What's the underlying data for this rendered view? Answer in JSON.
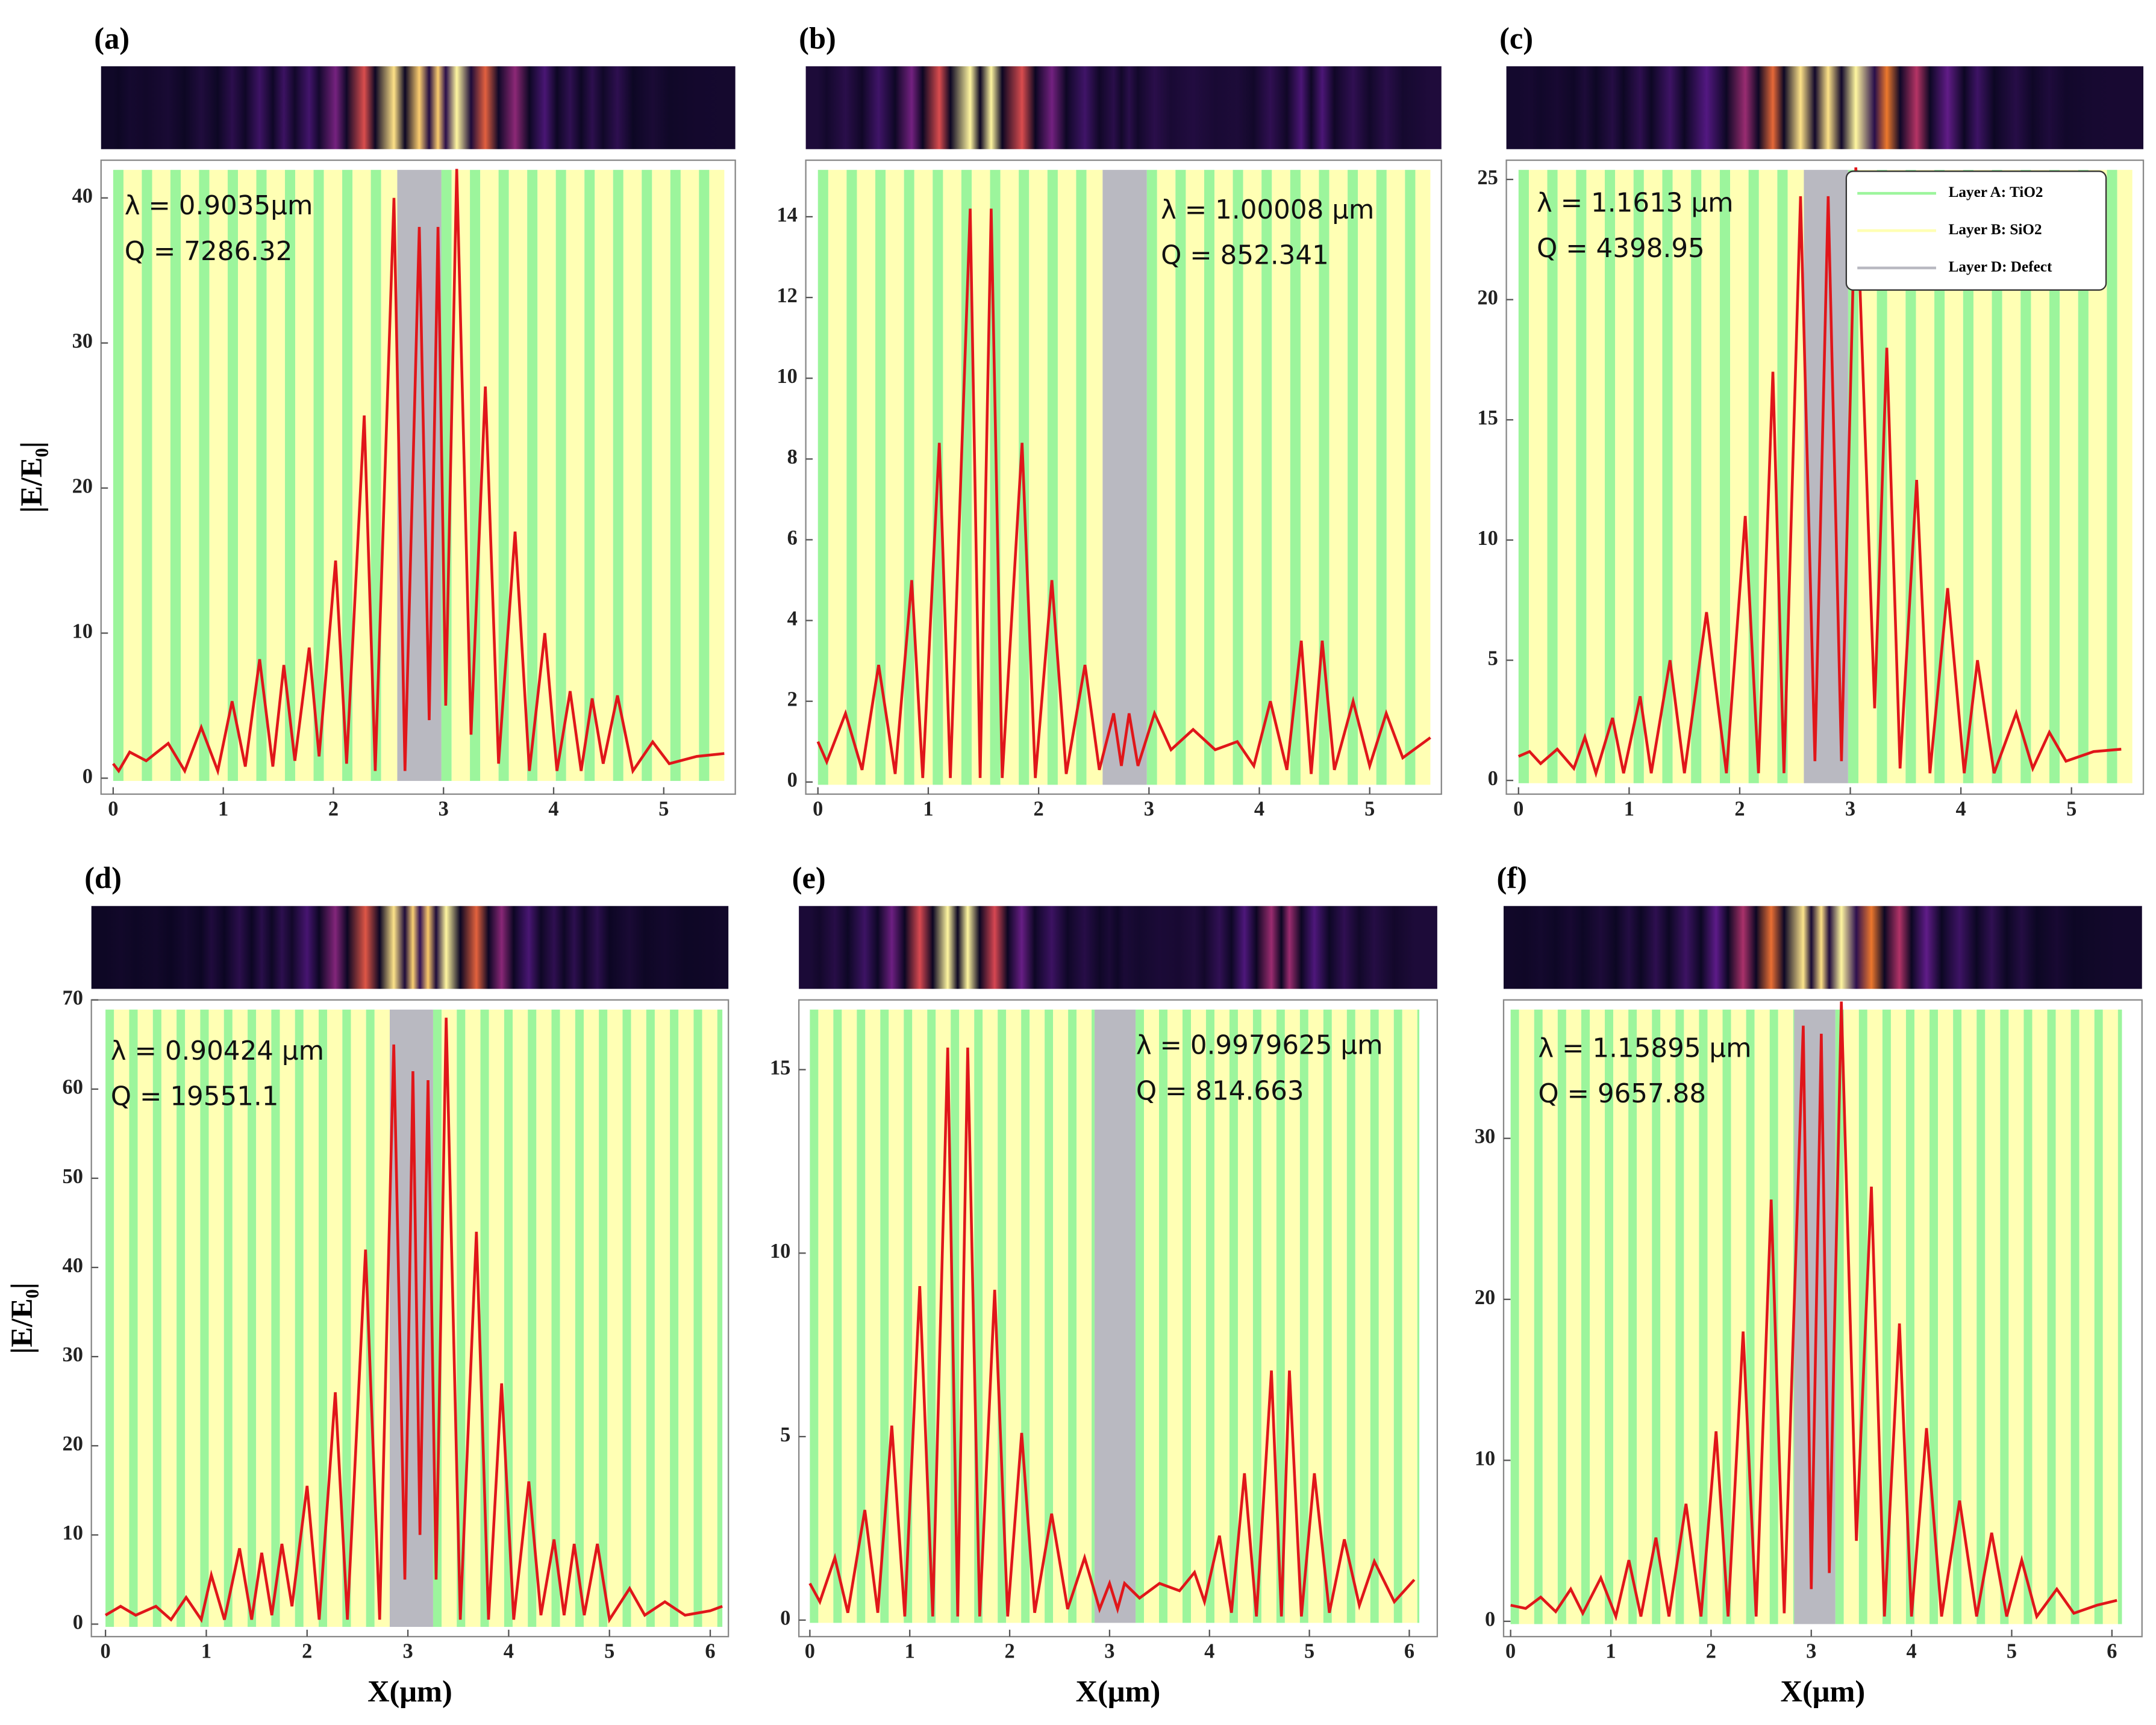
{
  "chart_data": [
    {
      "type": "line",
      "panel_label": "(a)",
      "annotations": [
        "λ = 0.9035μm",
        "Q = 7286.32"
      ],
      "ylabel": "|E/E₀|",
      "color": "#e0161a",
      "x": [
        0,
        0.05,
        0.15,
        0.3,
        0.5,
        0.65,
        0.8,
        0.95,
        1.08,
        1.2,
        1.33,
        1.45,
        1.55,
        1.65,
        1.78,
        1.87,
        2.02,
        2.12,
        2.28,
        2.38,
        2.55,
        2.65,
        2.78,
        2.87,
        2.95,
        3.02,
        3.12,
        3.25,
        3.38,
        3.5,
        3.65,
        3.78,
        3.92,
        4.03,
        4.15,
        4.25,
        4.35,
        4.45,
        4.58,
        4.72,
        4.9,
        5.05,
        5.3,
        5.55
      ],
      "values": [
        1,
        0.5,
        1.8,
        1.2,
        2.4,
        0.5,
        3.5,
        0.5,
        5.3,
        0.8,
        8.2,
        0.8,
        7.8,
        1.2,
        9,
        1.5,
        15,
        1,
        25,
        0.5,
        40,
        0.5,
        38,
        4,
        38,
        5,
        42,
        3,
        27,
        1,
        17,
        0.5,
        10,
        0.5,
        6,
        0.5,
        5.5,
        1,
        5.7,
        0.5,
        2.5,
        1,
        1.5,
        1.7
      ],
      "xlim": [
        -0.11,
        5.65
      ],
      "xticks": [
        0,
        1,
        2,
        3,
        4,
        5
      ],
      "ylim": [
        -1.1,
        42.6
      ],
      "yticks": [
        0,
        10,
        20,
        30,
        40
      ],
      "layers": {
        "start": 0,
        "end": 5.55,
        "period": 0.26,
        "green_fraction": 0.36,
        "defect": [
          2.58,
          2.98
        ],
        "colors": [
          "#9cf59c",
          "#ffffb4",
          "#b9b9c1"
        ]
      }
    },
    {
      "type": "line",
      "panel_label": "(b)",
      "annotations": [
        "λ = 1.00008 μm",
        "Q = 852.341"
      ],
      "color": "#e0161a",
      "x": [
        0,
        0.08,
        0.25,
        0.4,
        0.55,
        0.7,
        0.85,
        0.95,
        1.1,
        1.2,
        1.38,
        1.47,
        1.57,
        1.67,
        1.85,
        1.97,
        2.12,
        2.25,
        2.42,
        2.55,
        2.68,
        2.75,
        2.82,
        2.9,
        3.05,
        3.2,
        3.4,
        3.6,
        3.8,
        3.95,
        4.1,
        4.25,
        4.38,
        4.47,
        4.57,
        4.68,
        4.85,
        5,
        5.15,
        5.3,
        5.55
      ],
      "values": [
        1,
        0.5,
        1.7,
        0.3,
        2.9,
        0.2,
        5,
        0.1,
        8.4,
        0.1,
        14.2,
        0.1,
        14.2,
        0.1,
        8.4,
        0.1,
        5,
        0.2,
        2.9,
        0.3,
        1.7,
        0.4,
        1.7,
        0.4,
        1.7,
        0.8,
        1.3,
        0.8,
        1,
        0.4,
        2,
        0.3,
        3.5,
        0.2,
        3.5,
        0.3,
        2,
        0.4,
        1.7,
        0.6,
        1.1
      ],
      "xlim": [
        -0.11,
        5.65
      ],
      "xticks": [
        0,
        1,
        2,
        3,
        4,
        5
      ],
      "ylim": [
        -0.3,
        15.4
      ],
      "yticks": [
        0,
        2,
        4,
        6,
        8,
        10,
        12,
        14
      ],
      "layers": {
        "start": 0,
        "end": 5.55,
        "period": 0.26,
        "green_fraction": 0.36,
        "defect": [
          2.58,
          2.98
        ],
        "colors": [
          "#9cf59c",
          "#ffffb4",
          "#b9b9c1"
        ]
      }
    },
    {
      "type": "line",
      "panel_label": "(c)",
      "annotations": [
        "λ = 1.1613 μm",
        "Q = 4398.95"
      ],
      "color": "#e0161a",
      "x": [
        0,
        0.1,
        0.2,
        0.35,
        0.5,
        0.6,
        0.7,
        0.85,
        0.95,
        1.1,
        1.2,
        1.37,
        1.5,
        1.7,
        1.88,
        2.05,
        2.17,
        2.3,
        2.4,
        2.55,
        2.68,
        2.8,
        2.92,
        3.05,
        3.22,
        3.33,
        3.45,
        3.6,
        3.72,
        3.88,
        4.03,
        4.15,
        4.3,
        4.5,
        4.65,
        4.8,
        4.95,
        5.2,
        5.45
      ],
      "values": [
        1,
        1.2,
        0.7,
        1.3,
        0.5,
        1.8,
        0.3,
        2.6,
        0.3,
        3.5,
        0.3,
        5,
        0.3,
        7,
        0.3,
        11,
        0.3,
        17,
        0.3,
        24.3,
        0.8,
        24.3,
        0.8,
        25.5,
        3,
        18,
        0.5,
        12.5,
        0.3,
        8,
        0.3,
        5,
        0.3,
        2.8,
        0.5,
        2,
        0.8,
        1.2,
        1.3
      ],
      "xlim": [
        -0.11,
        5.65
      ],
      "xticks": [
        0,
        1,
        2,
        3,
        4,
        5
      ],
      "ylim": [
        -0.57,
        25.8
      ],
      "yticks": [
        0,
        5,
        10,
        15,
        20,
        25
      ],
      "layers": {
        "start": 0,
        "end": 5.55,
        "period": 0.26,
        "green_fraction": 0.36,
        "defect": [
          2.58,
          2.98
        ],
        "colors": [
          "#9cf59c",
          "#ffffb4",
          "#b9b9c1"
        ]
      },
      "legend": {
        "corner": "upper right",
        "labels": [
          "Layer A: TiO2",
          "Layer B: SiO2",
          "Layer D: Defect"
        ]
      }
    },
    {
      "type": "line",
      "panel_label": "(d)",
      "annotations": [
        "λ = 0.90424 μm",
        "Q = 19551.1"
      ],
      "ylabel": "|E/E₀|",
      "xlabel": "X(μm)",
      "color": "#e0161a",
      "x": [
        0,
        0.15,
        0.3,
        0.5,
        0.65,
        0.8,
        0.95,
        1.05,
        1.18,
        1.33,
        1.45,
        1.55,
        1.65,
        1.75,
        1.85,
        2,
        2.12,
        2.28,
        2.4,
        2.58,
        2.72,
        2.86,
        2.97,
        3.05,
        3.12,
        3.2,
        3.28,
        3.38,
        3.52,
        3.68,
        3.8,
        3.93,
        4.05,
        4.2,
        4.32,
        4.45,
        4.55,
        4.65,
        4.75,
        4.88,
        5,
        5.2,
        5.35,
        5.55,
        5.75,
        6,
        6.12
      ],
      "values": [
        1,
        2,
        1,
        2,
        0.5,
        3,
        0.5,
        5.5,
        0.5,
        8.5,
        0.5,
        8,
        1,
        9,
        2,
        15.5,
        0.5,
        26,
        0.5,
        42,
        0.5,
        65,
        5,
        62,
        10,
        61,
        5,
        68,
        0.5,
        44,
        0.5,
        27,
        0.5,
        16,
        1,
        9.5,
        1,
        9,
        1,
        9,
        0.5,
        4,
        1,
        2.5,
        1,
        1.5,
        2
      ],
      "xlim": [
        -0.14,
        6.18
      ],
      "xticks": [
        0,
        1,
        2,
        3,
        4,
        5,
        6
      ],
      "ylim": [
        -1.4,
        70
      ],
      "yticks": [
        0,
        10,
        20,
        30,
        40,
        50,
        60,
        70
      ],
      "layers": {
        "start": 0,
        "end": 6.12,
        "period": 0.235,
        "green_fraction": 0.36,
        "defect": [
          2.82,
          3.25
        ],
        "colors": [
          "#9cf59c",
          "#ffffb4",
          "#b9b9c1"
        ]
      }
    },
    {
      "type": "line",
      "panel_label": "(e)",
      "annotations": [
        "λ = 0.9979625 μm",
        "Q = 814.663"
      ],
      "xlabel": "X(μm)",
      "color": "#e0161a",
      "x": [
        0,
        0.1,
        0.25,
        0.38,
        0.55,
        0.68,
        0.82,
        0.95,
        1.1,
        1.23,
        1.38,
        1.48,
        1.58,
        1.7,
        1.85,
        1.98,
        2.12,
        2.25,
        2.42,
        2.58,
        2.75,
        2.9,
        3,
        3.08,
        3.15,
        3.3,
        3.5,
        3.7,
        3.85,
        3.95,
        4.1,
        4.22,
        4.35,
        4.47,
        4.62,
        4.72,
        4.8,
        4.92,
        5.05,
        5.2,
        5.35,
        5.5,
        5.65,
        5.85,
        6.05
      ],
      "values": [
        1,
        0.5,
        1.7,
        0.2,
        3,
        0.2,
        5.3,
        0.1,
        9.1,
        0.1,
        15.6,
        0.1,
        15.6,
        0.1,
        9,
        0.1,
        5.1,
        0.2,
        2.9,
        0.3,
        1.7,
        0.3,
        1,
        0.3,
        1,
        0.6,
        1,
        0.8,
        1.3,
        0.5,
        2.3,
        0.2,
        4,
        0.1,
        6.8,
        0.1,
        6.8,
        0.1,
        4,
        0.2,
        2.2,
        0.4,
        1.6,
        0.5,
        1.1
      ],
      "xlim": [
        -0.11,
        6.28
      ],
      "xticks": [
        0,
        1,
        2,
        3,
        4,
        5,
        6
      ],
      "ylim": [
        -0.45,
        16.9
      ],
      "yticks": [
        0,
        5,
        10,
        15
      ],
      "layers": {
        "start": 0,
        "end": 6.1,
        "period": 0.235,
        "green_fraction": 0.36,
        "defect": [
          2.85,
          3.26
        ],
        "colors": [
          "#9cf59c",
          "#ffffb4",
          "#b9b9c1"
        ]
      }
    },
    {
      "type": "line",
      "panel_label": "(f)",
      "annotations": [
        "λ = 1.15895 μm",
        "Q = 9657.88"
      ],
      "xlabel": "X(μm)",
      "color": "#e0161a",
      "x": [
        0,
        0.15,
        0.3,
        0.45,
        0.6,
        0.72,
        0.9,
        1.05,
        1.18,
        1.3,
        1.45,
        1.58,
        1.75,
        1.9,
        2.05,
        2.17,
        2.32,
        2.45,
        2.6,
        2.73,
        2.92,
        3,
        3.1,
        3.18,
        3.3,
        3.45,
        3.6,
        3.73,
        3.88,
        4,
        4.15,
        4.3,
        4.48,
        4.65,
        4.8,
        4.95,
        5.1,
        5.25,
        5.45,
        5.62,
        5.85,
        6.05
      ],
      "values": [
        1,
        0.8,
        1.5,
        0.6,
        2,
        0.5,
        2.7,
        0.3,
        3.8,
        0.3,
        5.2,
        0.3,
        7.3,
        0.3,
        11.8,
        0.3,
        18,
        0.3,
        26.2,
        0.5,
        37,
        2,
        36.5,
        3,
        38.5,
        5,
        27,
        0.3,
        18.5,
        0.3,
        12,
        0.3,
        7.5,
        0.3,
        5.5,
        0.3,
        3.8,
        0.3,
        2,
        0.5,
        1,
        1.3
      ],
      "xlim": [
        -0.07,
        6.3
      ],
      "xticks": [
        0,
        1,
        2,
        3,
        4,
        5,
        6
      ],
      "ylim": [
        -0.95,
        38.6
      ],
      "yticks": [
        0,
        10,
        20,
        30
      ],
      "layers": {
        "start": 0,
        "end": 6.1,
        "period": 0.235,
        "green_fraction": 0.36,
        "defect": [
          2.83,
          3.24
        ],
        "colors": [
          "#9cf59c",
          "#ffffb4",
          "#b9b9c1"
        ]
      }
    }
  ]
}
